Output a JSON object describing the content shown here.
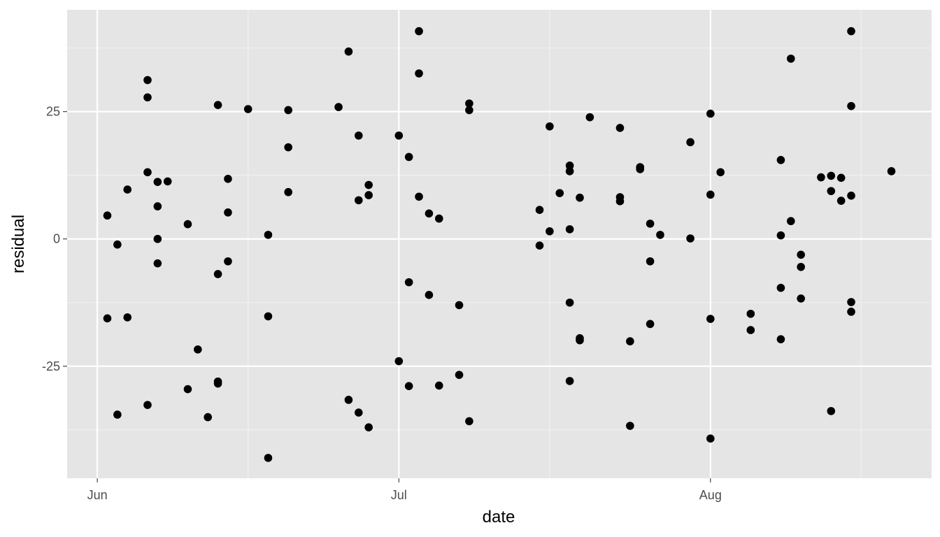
{
  "chart_data": {
    "type": "scatter",
    "title": "",
    "xlabel": "date",
    "ylabel": "residual",
    "x_type": "date",
    "xlim": [
      "2020-05-29",
      "2020-08-23"
    ],
    "ylim": [
      -47,
      45
    ],
    "x_ticks": [
      {
        "date": "2020-06-01",
        "label": "Jun"
      },
      {
        "date": "2020-07-01",
        "label": "Jul"
      },
      {
        "date": "2020-08-01",
        "label": "Aug"
      }
    ],
    "x_minor_ticks": [
      "2020-06-16",
      "2020-07-16",
      "2020-08-16"
    ],
    "y_ticks": [
      {
        "value": -25,
        "label": "-25"
      },
      {
        "value": 0,
        "label": "0"
      },
      {
        "value": 25,
        "label": "25"
      }
    ],
    "y_minor_ticks": [
      -37.5,
      -12.5,
      12.5,
      37.5
    ],
    "grid": true,
    "colors": {
      "panel": "#e5e5e5",
      "grid_major": "#ffffff",
      "grid_minor": "#f2f2f2",
      "point": "#000000",
      "tick_text": "#4d4d4d",
      "title_text": "#000000"
    },
    "points": [
      {
        "x": "2020-06-02",
        "y": 4.6
      },
      {
        "x": "2020-06-02",
        "y": -15.6
      },
      {
        "x": "2020-06-03",
        "y": -1.1
      },
      {
        "x": "2020-06-03",
        "y": -34.5
      },
      {
        "x": "2020-06-04",
        "y": 9.7
      },
      {
        "x": "2020-06-04",
        "y": -15.4
      },
      {
        "x": "2020-06-06",
        "y": 31.2
      },
      {
        "x": "2020-06-06",
        "y": 27.8
      },
      {
        "x": "2020-06-06",
        "y": 13.1
      },
      {
        "x": "2020-06-06",
        "y": -32.6
      },
      {
        "x": "2020-06-07",
        "y": 11.2
      },
      {
        "x": "2020-06-07",
        "y": 6.4
      },
      {
        "x": "2020-06-07",
        "y": 0
      },
      {
        "x": "2020-06-07",
        "y": -4.8
      },
      {
        "x": "2020-06-08",
        "y": 11.3
      },
      {
        "x": "2020-06-10",
        "y": 2.9
      },
      {
        "x": "2020-06-10",
        "y": -29.5
      },
      {
        "x": "2020-06-11",
        "y": -21.7
      },
      {
        "x": "2020-06-12",
        "y": -35.0
      },
      {
        "x": "2020-06-13",
        "y": 26.3
      },
      {
        "x": "2020-06-13",
        "y": -6.9
      },
      {
        "x": "2020-06-13",
        "y": -28.0
      },
      {
        "x": "2020-06-13",
        "y": -28.4
      },
      {
        "x": "2020-06-14",
        "y": 11.8
      },
      {
        "x": "2020-06-14",
        "y": 5.2
      },
      {
        "x": "2020-06-14",
        "y": -4.4
      },
      {
        "x": "2020-06-16",
        "y": 25.5
      },
      {
        "x": "2020-06-18",
        "y": 0.8
      },
      {
        "x": "2020-06-18",
        "y": -15.2
      },
      {
        "x": "2020-06-18",
        "y": -43.0
      },
      {
        "x": "2020-06-20",
        "y": 25.3
      },
      {
        "x": "2020-06-20",
        "y": 18.0
      },
      {
        "x": "2020-06-20",
        "y": 9.2
      },
      {
        "x": "2020-06-25",
        "y": 25.9
      },
      {
        "x": "2020-06-26",
        "y": 36.8
      },
      {
        "x": "2020-06-26",
        "y": -31.6
      },
      {
        "x": "2020-06-27",
        "y": 20.3
      },
      {
        "x": "2020-06-27",
        "y": 7.6
      },
      {
        "x": "2020-06-27",
        "y": -34.1
      },
      {
        "x": "2020-06-28",
        "y": 10.6
      },
      {
        "x": "2020-06-28",
        "y": 8.6
      },
      {
        "x": "2020-06-28",
        "y": -37.0
      },
      {
        "x": "2020-07-01",
        "y": 20.3
      },
      {
        "x": "2020-07-01",
        "y": -24.0
      },
      {
        "x": "2020-07-02",
        "y": 16.1
      },
      {
        "x": "2020-07-02",
        "y": -8.5
      },
      {
        "x": "2020-07-02",
        "y": -28.9
      },
      {
        "x": "2020-07-03",
        "y": 40.8
      },
      {
        "x": "2020-07-03",
        "y": 32.5
      },
      {
        "x": "2020-07-03",
        "y": 8.3
      },
      {
        "x": "2020-07-04",
        "y": 5.0
      },
      {
        "x": "2020-07-04",
        "y": -11.0
      },
      {
        "x": "2020-07-05",
        "y": 4.0
      },
      {
        "x": "2020-07-05",
        "y": -28.8
      },
      {
        "x": "2020-07-07",
        "y": -13.0
      },
      {
        "x": "2020-07-07",
        "y": -26.7
      },
      {
        "x": "2020-07-08",
        "y": 26.6
      },
      {
        "x": "2020-07-08",
        "y": 25.3
      },
      {
        "x": "2020-07-08",
        "y": -35.8
      },
      {
        "x": "2020-07-15",
        "y": 5.7
      },
      {
        "x": "2020-07-15",
        "y": -1.3
      },
      {
        "x": "2020-07-16",
        "y": 22.1
      },
      {
        "x": "2020-07-16",
        "y": 1.5
      },
      {
        "x": "2020-07-17",
        "y": 9.0
      },
      {
        "x": "2020-07-18",
        "y": 14.4
      },
      {
        "x": "2020-07-18",
        "y": 13.3
      },
      {
        "x": "2020-07-18",
        "y": 1.9
      },
      {
        "x": "2020-07-18",
        "y": -12.5
      },
      {
        "x": "2020-07-18",
        "y": -27.9
      },
      {
        "x": "2020-07-19",
        "y": 8.1
      },
      {
        "x": "2020-07-19",
        "y": -19.5
      },
      {
        "x": "2020-07-19",
        "y": -19.9
      },
      {
        "x": "2020-07-20",
        "y": 23.9
      },
      {
        "x": "2020-07-23",
        "y": 21.8
      },
      {
        "x": "2020-07-23",
        "y": 8.2
      },
      {
        "x": "2020-07-23",
        "y": 7.4
      },
      {
        "x": "2020-07-24",
        "y": -20.1
      },
      {
        "x": "2020-07-24",
        "y": -36.7
      },
      {
        "x": "2020-07-25",
        "y": 14.1
      },
      {
        "x": "2020-07-25",
        "y": 13.7
      },
      {
        "x": "2020-07-26",
        "y": 3.0
      },
      {
        "x": "2020-07-26",
        "y": -4.4
      },
      {
        "x": "2020-07-26",
        "y": -16.7
      },
      {
        "x": "2020-07-27",
        "y": 0.8
      },
      {
        "x": "2020-07-30",
        "y": 19.0
      },
      {
        "x": "2020-07-30",
        "y": 0.1
      },
      {
        "x": "2020-08-01",
        "y": 24.6
      },
      {
        "x": "2020-08-01",
        "y": 8.7
      },
      {
        "x": "2020-08-01",
        "y": -15.7
      },
      {
        "x": "2020-08-01",
        "y": -39.2
      },
      {
        "x": "2020-08-02",
        "y": 13.1
      },
      {
        "x": "2020-08-05",
        "y": -14.7
      },
      {
        "x": "2020-08-05",
        "y": -17.9
      },
      {
        "x": "2020-08-08",
        "y": 15.5
      },
      {
        "x": "2020-08-08",
        "y": 0.7
      },
      {
        "x": "2020-08-08",
        "y": -9.6
      },
      {
        "x": "2020-08-08",
        "y": -19.7
      },
      {
        "x": "2020-08-09",
        "y": 35.4
      },
      {
        "x": "2020-08-09",
        "y": 3.5
      },
      {
        "x": "2020-08-10",
        "y": -3.1
      },
      {
        "x": "2020-08-10",
        "y": -5.5
      },
      {
        "x": "2020-08-10",
        "y": -11.7
      },
      {
        "x": "2020-08-12",
        "y": 12.1
      },
      {
        "x": "2020-08-13",
        "y": 12.4
      },
      {
        "x": "2020-08-13",
        "y": 9.4
      },
      {
        "x": "2020-08-13",
        "y": -33.8
      },
      {
        "x": "2020-08-14",
        "y": 12.0
      },
      {
        "x": "2020-08-14",
        "y": 7.5
      },
      {
        "x": "2020-08-15",
        "y": 40.8
      },
      {
        "x": "2020-08-15",
        "y": 26.1
      },
      {
        "x": "2020-08-15",
        "y": 8.5
      },
      {
        "x": "2020-08-15",
        "y": -12.4
      },
      {
        "x": "2020-08-15",
        "y": -14.3
      },
      {
        "x": "2020-08-19",
        "y": 13.3
      }
    ]
  }
}
